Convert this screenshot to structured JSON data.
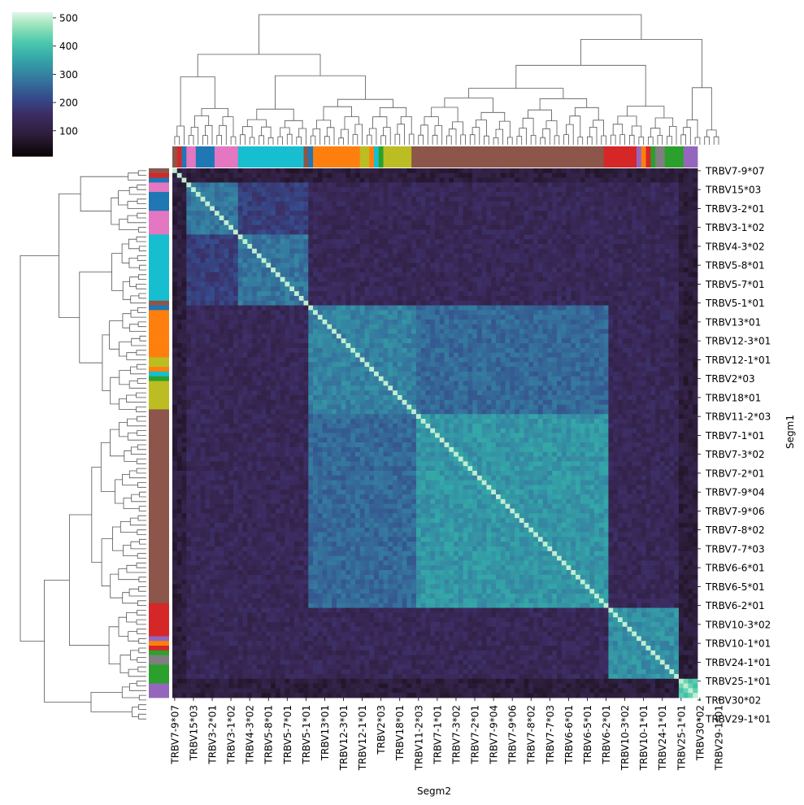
{
  "chart_data": {
    "type": "heatmap",
    "subtype": "clustermap",
    "xlabel": "Segm2",
    "ylabel": "Segm1",
    "colormap": "mako",
    "colorbar": {
      "ticks": [
        100,
        200,
        300,
        400,
        500
      ],
      "vmin": 10,
      "vmax": 520
    },
    "row_tick_labels": [
      "TRBV7-9*07",
      "TRBV15*03",
      "TRBV3-2*01",
      "TRBV3-1*02",
      "TRBV4-3*02",
      "TRBV5-8*01",
      "TRBV5-7*01",
      "TRBV5-1*01",
      "TRBV13*01",
      "TRBV12-3*01",
      "TRBV12-1*01",
      "TRBV2*03",
      "TRBV18*01",
      "TRBV11-2*03",
      "TRBV7-1*01",
      "TRBV7-3*02",
      "TRBV7-2*01",
      "TRBV7-9*04",
      "TRBV7-9*06",
      "TRBV7-8*02",
      "TRBV7-7*03",
      "TRBV6-6*01",
      "TRBV6-5*01",
      "TRBV6-2*01",
      "TRBV10-3*02",
      "TRBV10-1*01",
      "TRBV24-1*01",
      "TRBV25-1*01",
      "TRBV30*02",
      "TRBV29-1*01"
    ],
    "col_tick_labels": [
      "TRBV7-9*07",
      "TRBV15*03",
      "TRBV3-2*01",
      "TRBV3-1*02",
      "TRBV4-3*02",
      "TRBV5-8*01",
      "TRBV5-7*01",
      "TRBV5-1*01",
      "TRBV13*01",
      "TRBV12-3*01",
      "TRBV12-1*01",
      "TRBV2*03",
      "TRBV18*01",
      "TRBV11-2*03",
      "TRBV7-1*01",
      "TRBV7-3*02",
      "TRBV7-2*01",
      "TRBV7-9*04",
      "TRBV7-9*06",
      "TRBV7-8*02",
      "TRBV7-7*03",
      "TRBV6-6*01",
      "TRBV6-5*01",
      "TRBV6-2*01",
      "TRBV10-3*02",
      "TRBV10-1*01",
      "TRBV24-1*01",
      "TRBV25-1*01",
      "TRBV30*02",
      "TRBV29-1*01"
    ],
    "group_colors": [
      "#8c564b",
      "#d62728",
      "#1f77b4",
      "#e377c2",
      "#e377c2",
      "#1f77b4",
      "#1f77b4",
      "#1f77b4",
      "#1f77b4",
      "#e377c2",
      "#e377c2",
      "#e377c2",
      "#e377c2",
      "#e377c2",
      "#17becf",
      "#17becf",
      "#17becf",
      "#17becf",
      "#17becf",
      "#17becf",
      "#17becf",
      "#17becf",
      "#17becf",
      "#17becf",
      "#17becf",
      "#17becf",
      "#17becf",
      "#17becf",
      "#8c564b",
      "#1f77b4",
      "#ff7f0e",
      "#ff7f0e",
      "#ff7f0e",
      "#ff7f0e",
      "#ff7f0e",
      "#ff7f0e",
      "#ff7f0e",
      "#ff7f0e",
      "#ff7f0e",
      "#ff7f0e",
      "#bcbd22",
      "#bcbd22",
      "#ff7f0e",
      "#17becf",
      "#2ca02c",
      "#bcbd22",
      "#bcbd22",
      "#bcbd22",
      "#bcbd22",
      "#bcbd22",
      "#bcbd22",
      "#8c564b",
      "#8c564b",
      "#8c564b",
      "#8c564b",
      "#8c564b",
      "#8c564b",
      "#8c564b",
      "#8c564b",
      "#8c564b",
      "#8c564b",
      "#8c564b",
      "#8c564b",
      "#8c564b",
      "#8c564b",
      "#8c564b",
      "#8c564b",
      "#8c564b",
      "#8c564b",
      "#8c564b",
      "#8c564b",
      "#8c564b",
      "#8c564b",
      "#8c564b",
      "#8c564b",
      "#8c564b",
      "#8c564b",
      "#8c564b",
      "#8c564b",
      "#8c564b",
      "#8c564b",
      "#8c564b",
      "#8c564b",
      "#8c564b",
      "#8c564b",
      "#8c564b",
      "#8c564b",
      "#8c564b",
      "#8c564b",
      "#8c564b",
      "#8c564b",
      "#8c564b",
      "#d62728",
      "#d62728",
      "#d62728",
      "#d62728",
      "#d62728",
      "#d62728",
      "#d62728",
      "#9467bd",
      "#ff7f0e",
      "#d62728",
      "#2ca02c",
      "#7f7f7f",
      "#7f7f7f",
      "#2ca02c",
      "#2ca02c",
      "#2ca02c",
      "#2ca02c",
      "#9467bd",
      "#9467bd",
      "#9467bd"
    ],
    "blocks": [
      {
        "start": 3,
        "end": 13,
        "value": 280
      },
      {
        "start": 14,
        "end": 28,
        "value": 280
      },
      {
        "start": 29,
        "end": 51,
        "value": 300
      },
      {
        "start": 52,
        "end": 92,
        "value": 330
      },
      {
        "start": 93,
        "end": 107,
        "value": 320
      },
      {
        "start": 108,
        "end": 112,
        "value": 420
      },
      {
        "start": 113,
        "end": 116,
        "value": 430
      }
    ],
    "off_diagonal": [
      {
        "rows": [
          29,
          92
        ],
        "cols": [
          29,
          92
        ],
        "value": 260
      },
      {
        "rows": [
          93,
          107
        ],
        "cols": [
          93,
          107
        ],
        "value": 320
      },
      {
        "rows": [
          0,
          28
        ],
        "cols": [
          0,
          28
        ],
        "value": 190
      }
    ],
    "background_value": 135,
    "diagonal_value": 500
  }
}
